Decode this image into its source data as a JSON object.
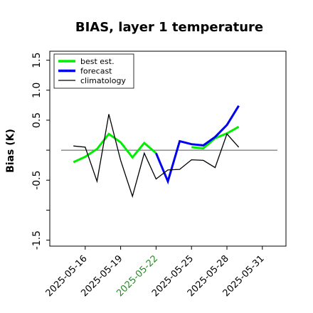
{
  "chart_data": {
    "type": "line",
    "title": "BIAS, layer 1 temperature",
    "ylabel": "Bias (K)",
    "xlabel": "",
    "ylim": [
      -1.6,
      1.65
    ],
    "xlim": [
      "2025-05-13",
      "2025-06-02"
    ],
    "grid": false,
    "legend_position": "top-left",
    "zero_line": 0.0,
    "y_ticks": [
      -1.5,
      -1.0,
      -0.5,
      0.0,
      0.5,
      1.0,
      1.5
    ],
    "y_tick_labels": [
      "-1.5",
      "",
      "-0.5",
      "",
      "0.5",
      "1.0",
      "1.5"
    ],
    "x_ticks": [
      "2025-05-16",
      "2025-05-19",
      "2025-05-22",
      "2025-05-25",
      "2025-05-28",
      "2025-05-31"
    ],
    "x_tick_labels": [
      "2025-05-16",
      "2025-05-19",
      "2025-05-22",
      "2025-05-25",
      "2025-05-28",
      "2025-05-31"
    ],
    "highlighted_tick": "2025-05-22",
    "highlight_color": "#228B22",
    "series": [
      {
        "name": "best est.",
        "color": "#00ee00",
        "x": [
          "2025-05-15",
          "2025-05-16",
          "2025-05-17",
          "2025-05-18",
          "2025-05-19",
          "2025-05-20",
          "2025-05-21",
          "2025-05-22",
          "2025-05-23",
          "2025-05-24",
          "2025-05-25",
          "2025-05-26",
          "2025-05-27",
          "2025-05-28",
          "2025-05-29"
        ],
        "values": [
          -0.2,
          -0.11,
          0.02,
          0.27,
          0.13,
          -0.12,
          0.12,
          -0.05,
          null,
          null,
          0.05,
          0.03,
          0.2,
          0.28,
          0.39
        ]
      },
      {
        "name": "forecast",
        "color": "#0000ee",
        "x": [
          "2025-05-15",
          "2025-05-16",
          "2025-05-17",
          "2025-05-18",
          "2025-05-19",
          "2025-05-20",
          "2025-05-21",
          "2025-05-22",
          "2025-05-23",
          "2025-05-24",
          "2025-05-25",
          "2025-05-26",
          "2025-05-27",
          "2025-05-28",
          "2025-05-29"
        ],
        "values": [
          null,
          null,
          null,
          null,
          null,
          null,
          null,
          -0.05,
          -0.52,
          0.15,
          0.1,
          0.08,
          0.22,
          0.42,
          0.74
        ]
      },
      {
        "name": "climatology",
        "color": "#000000",
        "x": [
          "2025-05-15",
          "2025-05-16",
          "2025-05-17",
          "2025-05-18",
          "2025-05-19",
          "2025-05-20",
          "2025-05-21",
          "2025-05-22",
          "2025-05-23",
          "2025-05-24",
          "2025-05-25",
          "2025-05-26",
          "2025-05-27",
          "2025-05-28",
          "2025-05-29"
        ],
        "values": [
          0.07,
          0.05,
          -0.52,
          0.6,
          -0.17,
          -0.77,
          -0.05,
          -0.48,
          -0.33,
          -0.32,
          -0.16,
          -0.17,
          -0.29,
          0.27,
          0.05
        ]
      }
    ]
  }
}
